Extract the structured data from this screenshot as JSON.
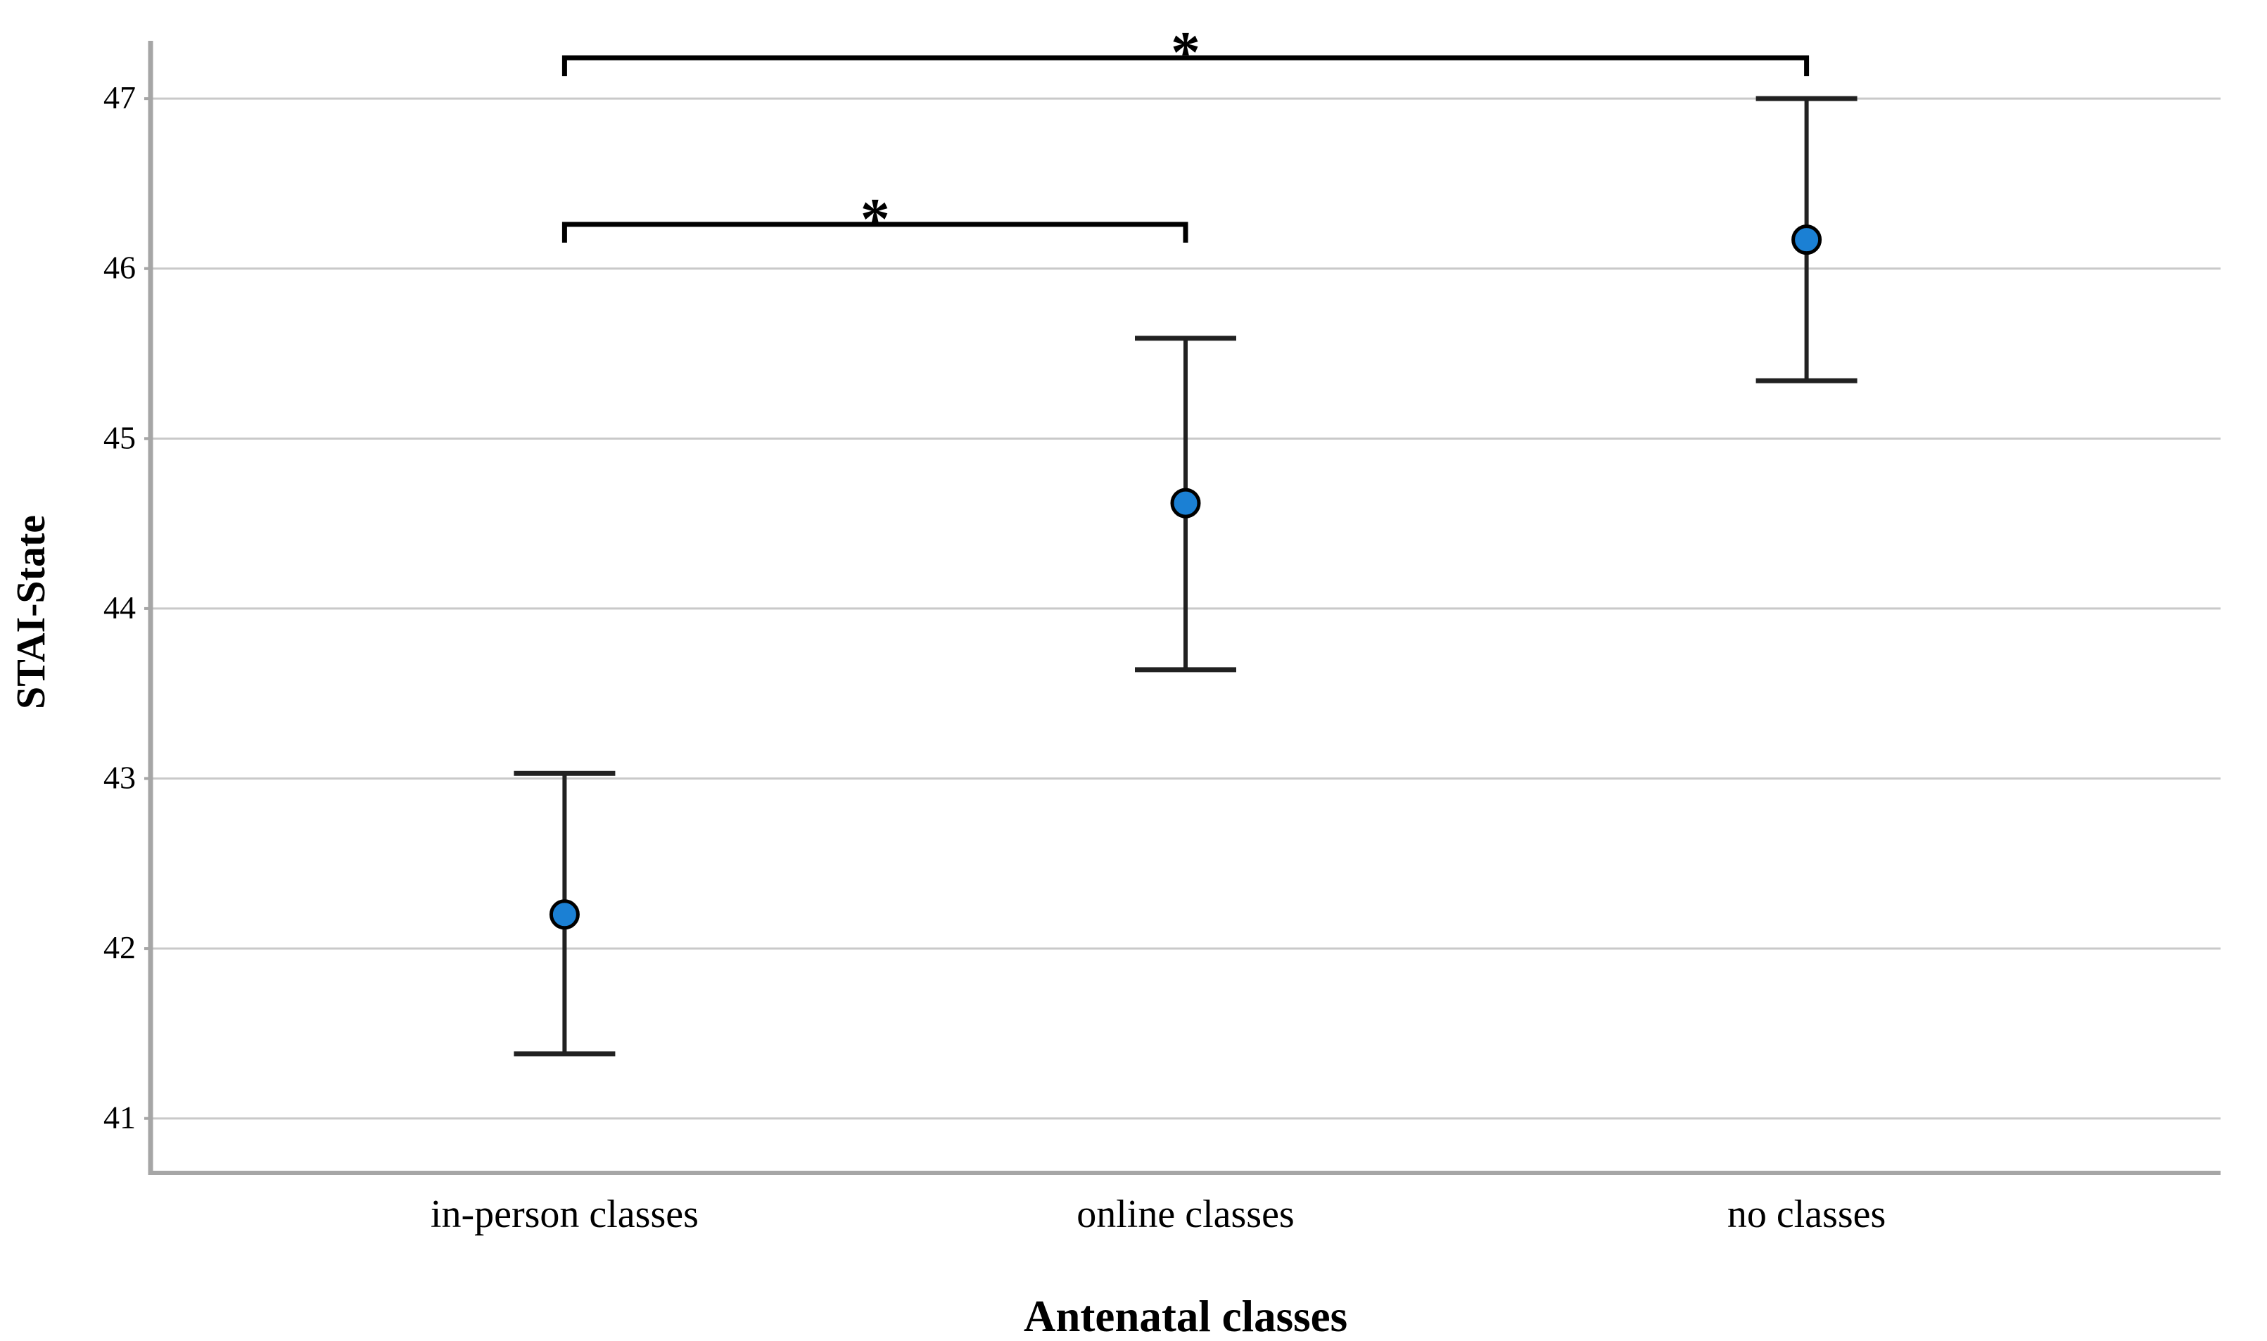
{
  "chart_data": {
    "type": "errorbar",
    "title": "",
    "xlabel": "Antenatal classes",
    "ylabel": "STAI-State",
    "categories": [
      "in-person classes",
      "online classes",
      "no classes"
    ],
    "means": [
      42.2,
      44.62,
      46.17
    ],
    "ci_low": [
      41.38,
      43.64,
      45.34
    ],
    "ci_high": [
      43.03,
      45.59,
      47.0
    ],
    "yticks": [
      41,
      42,
      43,
      44,
      45,
      46,
      47
    ],
    "ylim": [
      40.68,
      47.34
    ],
    "grid": "horizontal-only",
    "legend": "none",
    "significance_brackets": [
      {
        "from": "in-person classes",
        "to": "no classes",
        "label": "*",
        "y_value": 47.24
      },
      {
        "from": "in-person classes",
        "to": "online classes",
        "label": "*",
        "y_value": 46.26
      }
    ],
    "colors": {
      "marker_fill": "#1b80d4",
      "marker_edge": "#000000",
      "error_bar": "#212121",
      "bracket": "#000000",
      "gridline": "#c9c9c9",
      "axis_frame": "#a6a6a6",
      "text": "#000000",
      "background": "#ffffff"
    }
  }
}
